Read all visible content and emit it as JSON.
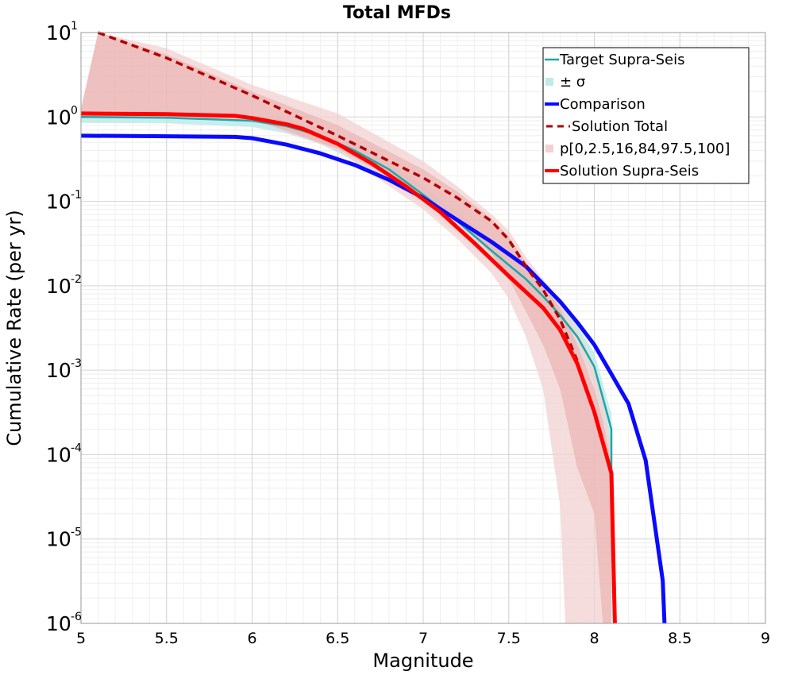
{
  "chart_data": {
    "type": "line",
    "title": "Total MFDs",
    "xlabel": "Magnitude",
    "ylabel": "Cumulative Rate (per yr)",
    "xlim": [
      5,
      9
    ],
    "ylim": [
      1e-06,
      10
    ],
    "yscale": "log",
    "grid": true,
    "legend_position": "top-right",
    "xticks": [
      5,
      5.5,
      6,
      6.5,
      7,
      7.5,
      8,
      8.5,
      9
    ],
    "xtick_labels": [
      "5",
      "5.5",
      "6",
      "6.5",
      "7",
      "7.5",
      "8",
      "8.5",
      "9"
    ],
    "yticks": [
      {
        "value": 10,
        "base": "10",
        "exp": "1"
      },
      {
        "value": 1,
        "base": "10",
        "exp": "0"
      },
      {
        "value": 0.1,
        "base": "10",
        "exp": "-1"
      },
      {
        "value": 0.01,
        "base": "10",
        "exp": "-2"
      },
      {
        "value": 0.001,
        "base": "10",
        "exp": "-3"
      },
      {
        "value": 0.0001,
        "base": "10",
        "exp": "-4"
      },
      {
        "value": 1e-05,
        "base": "10",
        "exp": "-5"
      },
      {
        "value": 1e-06,
        "base": "10",
        "exp": "-6"
      }
    ],
    "legend": [
      {
        "label": "Target Supra-Seis",
        "kind": "line",
        "color": "#1aa8a8"
      },
      {
        "label": "± σ",
        "kind": "patch",
        "color": "#bfeaea"
      },
      {
        "label": "Comparison",
        "kind": "line-thick",
        "color": "#0a0aff"
      },
      {
        "label": "Solution Total",
        "kind": "dashed",
        "color": "#b20000"
      },
      {
        "label": "p[0,2.5,16,84,97.5,100]",
        "kind": "patch",
        "color": "#f3d1d1"
      },
      {
        "label": "Solution Supra-Seis",
        "kind": "line-thick",
        "color": "#ff0000"
      }
    ],
    "series": [
      {
        "name": "Target Supra-Seis",
        "style": "line",
        "color": "#1aa8a8",
        "x": [
          5,
          5.5,
          6,
          6.2,
          6.4,
          6.6,
          6.8,
          7.0,
          7.2,
          7.4,
          7.6,
          7.7,
          7.8,
          7.9,
          8.0,
          8.1,
          8.1
        ],
        "y": [
          1.0,
          0.98,
          0.9,
          0.78,
          0.6,
          0.4,
          0.24,
          0.12,
          0.058,
          0.026,
          0.012,
          0.0075,
          0.0045,
          0.0025,
          0.0011,
          0.0002,
          5.5e-05
        ]
      },
      {
        "name": "Comparison",
        "style": "line-thick",
        "color": "#0a0aff",
        "x": [
          5,
          5.5,
          5.9,
          6.0,
          6.2,
          6.4,
          6.6,
          6.8,
          7.0,
          7.2,
          7.4,
          7.6,
          7.7,
          7.8,
          7.9,
          8.0,
          8.1,
          8.2,
          8.3,
          8.4,
          8.41
        ],
        "y": [
          0.6,
          0.59,
          0.58,
          0.56,
          0.47,
          0.37,
          0.27,
          0.18,
          0.11,
          0.06,
          0.033,
          0.017,
          0.0105,
          0.0065,
          0.0037,
          0.002,
          0.0009,
          0.0004,
          8.5e-05,
          3.2e-06,
          1e-06
        ]
      },
      {
        "name": "Solution Total",
        "style": "dashed",
        "color": "#b20000",
        "x": [
          5.1,
          5.5,
          6.0,
          6.5,
          7.0,
          7.2,
          7.4,
          7.5,
          7.6,
          7.7,
          7.8,
          7.9
        ],
        "y": [
          10,
          5.0,
          1.8,
          0.6,
          0.19,
          0.11,
          0.058,
          0.035,
          0.017,
          0.009,
          0.004,
          0.0013
        ]
      },
      {
        "name": "Solution Supra-Seis",
        "style": "line-thick",
        "color": "#ff0000",
        "x": [
          5,
          5.5,
          5.9,
          6.0,
          6.2,
          6.3,
          6.5,
          6.7,
          6.9,
          7.1,
          7.3,
          7.5,
          7.7,
          7.8,
          7.9,
          8.0,
          8.1,
          8.12
        ],
        "y": [
          1.1,
          1.08,
          1.03,
          0.97,
          0.82,
          0.72,
          0.48,
          0.28,
          0.15,
          0.075,
          0.032,
          0.013,
          0.0055,
          0.003,
          0.0012,
          0.00032,
          6e-05,
          1e-06
        ]
      }
    ],
    "bands": [
      {
        "name": "± σ",
        "color": "#bfeaea",
        "opacity": 0.85,
        "x": [
          5,
          5.5,
          6,
          6.2,
          6.4,
          6.6,
          6.8,
          7.0,
          7.2,
          7.4,
          7.6,
          7.7,
          7.8,
          7.9,
          8.0,
          8.1
        ],
        "upper": [
          1.15,
          1.13,
          1.05,
          0.92,
          0.72,
          0.5,
          0.3,
          0.15,
          0.075,
          0.035,
          0.016,
          0.01,
          0.006,
          0.0034,
          0.0016,
          0.0003
        ],
        "lower": [
          0.85,
          0.84,
          0.76,
          0.64,
          0.48,
          0.3,
          0.18,
          0.09,
          0.042,
          0.018,
          0.008,
          0.005,
          0.003,
          0.0016,
          0.0007,
          3.5e-05
        ]
      },
      {
        "name": "p[0,2.5,16,84,97.5,100] outer",
        "color": "#f3d1d1",
        "opacity": 0.75,
        "x": [
          5.0,
          5.1,
          5.5,
          6.0,
          6.5,
          7.0,
          7.2,
          7.4,
          7.5,
          7.6,
          7.7,
          7.8,
          7.83,
          7.9,
          8.0,
          8.05,
          8.1
        ],
        "upper": [
          1.3,
          10,
          6.5,
          2.4,
          1.1,
          0.3,
          0.15,
          0.07,
          0.045,
          0.022,
          0.012,
          0.0065,
          0.005,
          0.003,
          0.0012,
          0.0005,
          0.00011
        ],
        "lower": [
          1.0,
          1.0,
          1.0,
          0.92,
          0.4,
          0.08,
          0.036,
          0.014,
          0.007,
          0.0025,
          0.0006,
          2.5e-05,
          1e-06,
          1e-06,
          1e-06,
          1e-06,
          1e-06
        ]
      },
      {
        "name": "p[0,2.5,16,84,97.5,100] inner",
        "color": "#e8a8a8",
        "opacity": 0.55,
        "x": [
          5.0,
          5.1,
          5.5,
          6.0,
          6.5,
          7.0,
          7.2,
          7.4,
          7.5,
          7.6,
          7.7,
          7.8,
          7.9,
          8.0,
          8.05,
          8.1
        ],
        "upper": [
          1.2,
          10,
          5.5,
          2.0,
          0.8,
          0.24,
          0.13,
          0.062,
          0.038,
          0.019,
          0.01,
          0.0055,
          0.002,
          0.0006,
          0.00025,
          8e-05
        ],
        "lower": [
          1.0,
          1.0,
          1.0,
          0.95,
          0.42,
          0.12,
          0.06,
          0.024,
          0.012,
          0.005,
          0.002,
          0.0006,
          7e-05,
          2e-05,
          1e-06,
          1e-06
        ]
      }
    ]
  }
}
